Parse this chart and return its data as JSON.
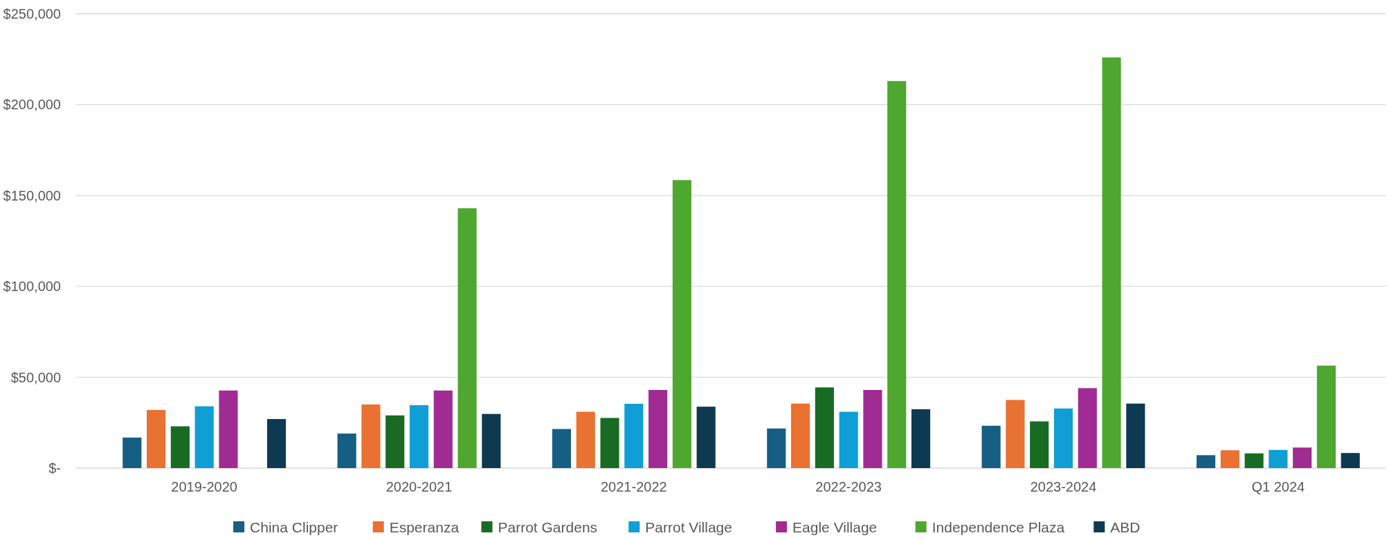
{
  "chart_data": {
    "type": "bar",
    "categories": [
      "2019-2020",
      "2020-2021",
      "2021-2022",
      "2022-2023",
      "2023-2024",
      "Q1 2024"
    ],
    "series": [
      {
        "name": "China Clipper",
        "color": "#165e83",
        "values": [
          16800,
          19000,
          21500,
          21800,
          23300,
          7100
        ]
      },
      {
        "name": "Esperanza",
        "color": "#e97132",
        "values": [
          32000,
          35000,
          31000,
          35500,
          37500,
          9800
        ]
      },
      {
        "name": "Parrot Gardens",
        "color": "#196b24",
        "values": [
          23000,
          29000,
          27600,
          44400,
          25700,
          8100
        ]
      },
      {
        "name": "Parrot Village",
        "color": "#0f9ed5",
        "values": [
          34000,
          34600,
          35400,
          31000,
          32800,
          10000
        ]
      },
      {
        "name": "Eagle Village",
        "color": "#a02b93",
        "values": [
          42700,
          42700,
          43000,
          43000,
          44000,
          11300
        ]
      },
      {
        "name": "Independence Plaza",
        "color": "#4ea72e",
        "values": [
          null,
          143000,
          158500,
          213000,
          226000,
          56400
        ]
      },
      {
        "name": "ABD",
        "color": "#0e3a51",
        "values": [
          27000,
          29800,
          33800,
          32400,
          35500,
          8300
        ]
      }
    ],
    "ylim": [
      0,
      250000
    ],
    "yticks": [
      {
        "value": 0,
        "label": "$-"
      },
      {
        "value": 50000,
        "label": "$50,000"
      },
      {
        "value": 100000,
        "label": "$100,000"
      },
      {
        "value": 150000,
        "label": "$150,000"
      },
      {
        "value": 200000,
        "label": "$200,000"
      },
      {
        "value": 250000,
        "label": "$250,000"
      }
    ],
    "grid": "y",
    "legend": "bottom"
  }
}
